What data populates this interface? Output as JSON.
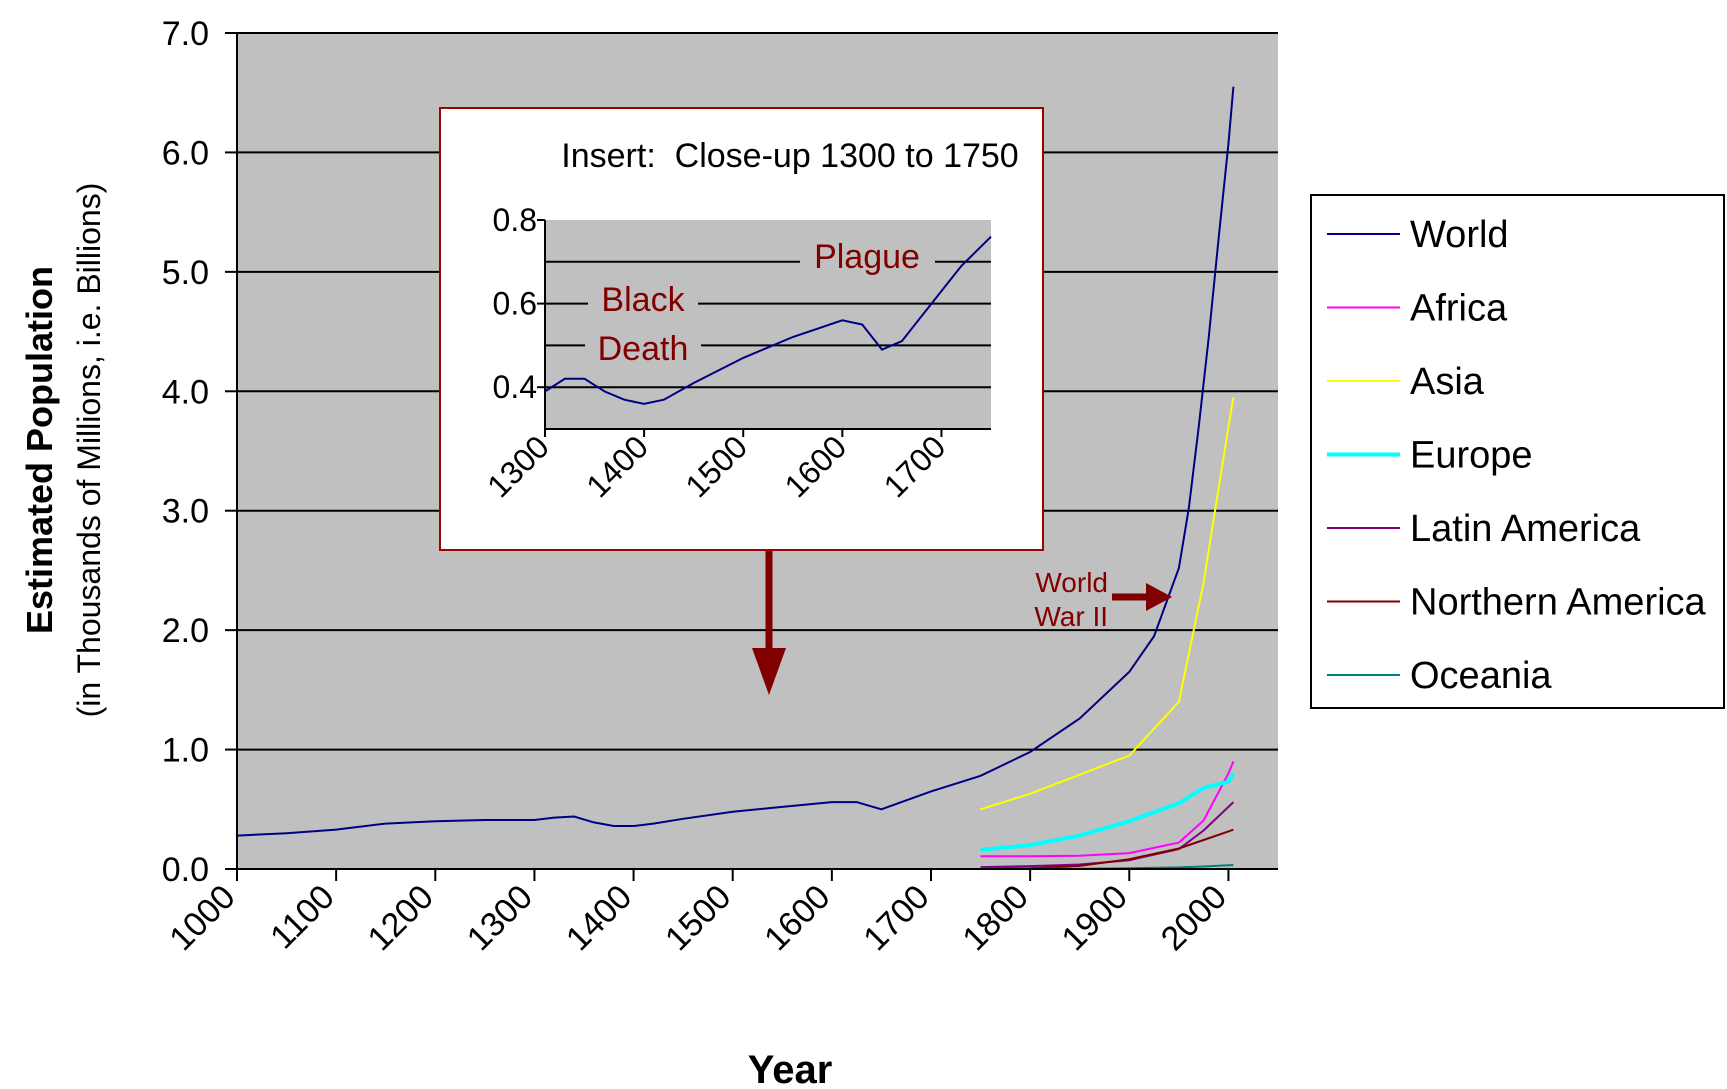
{
  "chart_data": [
    {
      "type": "line",
      "title": "",
      "xlabel": "Year",
      "ylabel": "Estimated Population",
      "ylabel_sub": "(in Thousands of Millions, i.e. Billions)",
      "xlim": [
        1000,
        2050
      ],
      "ylim": [
        0,
        7
      ],
      "x_ticks": [
        1000,
        1100,
        1200,
        1300,
        1400,
        1500,
        1600,
        1700,
        1800,
        1900,
        2000
      ],
      "x_tick_labels": [
        "1000",
        "1100",
        "1200",
        "1300",
        "1400",
        "1500",
        "1600",
        "1700",
        "1800",
        "1900",
        "2000"
      ],
      "y_ticks": [
        0,
        1,
        2,
        3,
        4,
        5,
        6,
        7
      ],
      "y_tick_labels": [
        "0.0",
        "1.0",
        "2.0",
        "3.0",
        "4.0",
        "5.0",
        "6.0",
        "7.0"
      ],
      "grid": "horizontal",
      "plot_background": "#c0c0c0",
      "legend_position": "right",
      "series": [
        {
          "name": "World",
          "color": "#000080",
          "x": [
            1000,
            1050,
            1100,
            1150,
            1200,
            1250,
            1300,
            1320,
            1340,
            1360,
            1380,
            1400,
            1420,
            1450,
            1500,
            1550,
            1600,
            1625,
            1650,
            1700,
            1750,
            1800,
            1850,
            1900,
            1925,
            1950,
            1960,
            1970,
            1980,
            1990,
            2000,
            2005
          ],
          "y": [
            0.28,
            0.3,
            0.33,
            0.38,
            0.4,
            0.41,
            0.41,
            0.43,
            0.44,
            0.39,
            0.36,
            0.36,
            0.38,
            0.42,
            0.48,
            0.52,
            0.56,
            0.56,
            0.5,
            0.65,
            0.78,
            0.98,
            1.26,
            1.65,
            1.95,
            2.52,
            3.02,
            3.7,
            4.44,
            5.27,
            6.07,
            6.55
          ]
        },
        {
          "name": "Africa",
          "color": "#ff00ff",
          "x": [
            1750,
            1800,
            1850,
            1900,
            1950,
            1975,
            2000,
            2005
          ],
          "y": [
            0.106,
            0.107,
            0.111,
            0.133,
            0.221,
            0.406,
            0.8,
            0.9
          ]
        },
        {
          "name": "Asia",
          "color": "#ffff00",
          "x": [
            1750,
            1800,
            1850,
            1900,
            1950,
            1975,
            2000,
            2005
          ],
          "y": [
            0.5,
            0.63,
            0.79,
            0.95,
            1.4,
            2.4,
            3.7,
            3.95
          ]
        },
        {
          "name": "Europe",
          "color": "#00ffff",
          "x": [
            1750,
            1800,
            1850,
            1900,
            1950,
            1975,
            2000,
            2005
          ],
          "y": [
            0.16,
            0.2,
            0.28,
            0.4,
            0.55,
            0.68,
            0.73,
            0.8
          ]
        },
        {
          "name": "Latin America",
          "color": "#800080",
          "x": [
            1750,
            1800,
            1850,
            1900,
            1950,
            1975,
            2000,
            2005
          ],
          "y": [
            0.016,
            0.024,
            0.038,
            0.074,
            0.167,
            0.322,
            0.52,
            0.56
          ]
        },
        {
          "name": "Northern America",
          "color": "#800000",
          "x": [
            1750,
            1800,
            1850,
            1900,
            1950,
            1975,
            2000,
            2005
          ],
          "y": [
            0.002,
            0.007,
            0.026,
            0.082,
            0.172,
            0.243,
            0.315,
            0.33
          ]
        },
        {
          "name": "Oceania",
          "color": "#008080",
          "x": [
            1750,
            1800,
            1850,
            1900,
            1950,
            1975,
            2000,
            2005
          ],
          "y": [
            0.002,
            0.002,
            0.002,
            0.006,
            0.013,
            0.021,
            0.031,
            0.033
          ]
        }
      ],
      "annotations": [
        {
          "text_lines": [
            "World",
            "War II"
          ],
          "color": "#800000",
          "x": 1940,
          "y": 2.3
        }
      ]
    },
    {
      "type": "line",
      "title": "Insert:  Close-up 1300 to 1750",
      "xlabel": "",
      "ylabel": "",
      "xlim": [
        1300,
        1750
      ],
      "ylim": [
        0.3,
        0.8
      ],
      "x_ticks": [
        1300,
        1400,
        1500,
        1600,
        1700
      ],
      "x_tick_labels": [
        "1300",
        "1400",
        "1500",
        "1600",
        "1700"
      ],
      "y_ticks": [
        0.4,
        0.6,
        0.8
      ],
      "y_tick_labels": [
        "0.4",
        "0.6",
        "0.8"
      ],
      "grid_lines": [
        0.4,
        0.5,
        0.6,
        0.7
      ],
      "series": [
        {
          "name": "World",
          "color": "#000080",
          "x": [
            1300,
            1320,
            1340,
            1360,
            1380,
            1400,
            1420,
            1450,
            1500,
            1550,
            1600,
            1620,
            1640,
            1660,
            1680,
            1700,
            1720,
            1750
          ],
          "y": [
            0.39,
            0.42,
            0.42,
            0.39,
            0.37,
            0.36,
            0.37,
            0.41,
            0.47,
            0.52,
            0.56,
            0.55,
            0.49,
            0.51,
            0.57,
            0.63,
            0.69,
            0.76
          ]
        }
      ],
      "annotations": [
        {
          "text_lines": [
            "Black",
            "Death"
          ],
          "color": "#800000",
          "x": 1400,
          "y": 0.53
        },
        {
          "text_lines": [
            "Plague"
          ],
          "color": "#800000",
          "x": 1660,
          "y": 0.7
        }
      ]
    }
  ]
}
